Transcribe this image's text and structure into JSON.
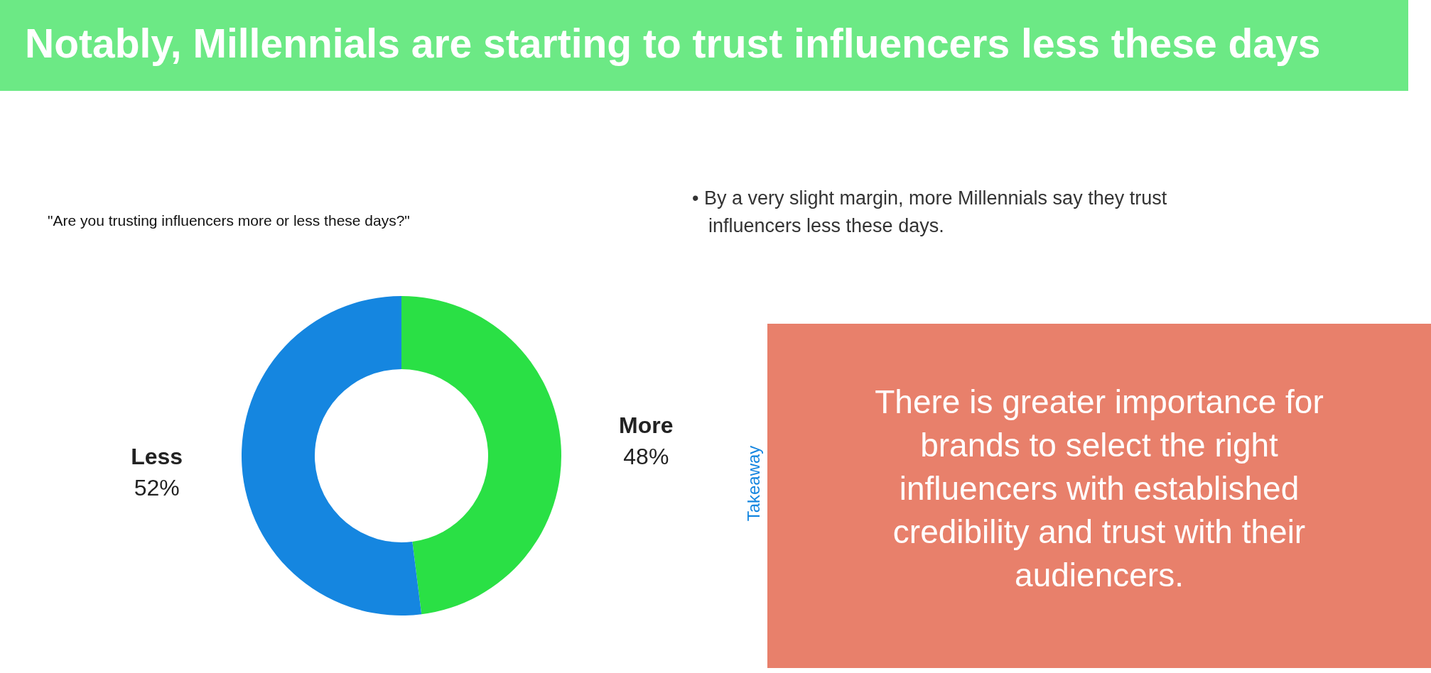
{
  "chart_data": {
    "type": "donut",
    "title": "Notably, Millennials are starting to trust influencers less these days",
    "subtitle": "\"Are you trusting influencers more or less these days?\"",
    "categories": [
      "More",
      "Less"
    ],
    "values": [
      48,
      52
    ],
    "colors": [
      "#2ae045",
      "#1586e0"
    ],
    "value_labels": [
      "48%",
      "52%"
    ],
    "annotations": [
      "• By a very slight margin, more Millennials say they trust influencers less these days.",
      "Takeaway",
      "There is greater importance for brands to select the right influencers with established credibility and trust with their audiencers."
    ]
  }
}
